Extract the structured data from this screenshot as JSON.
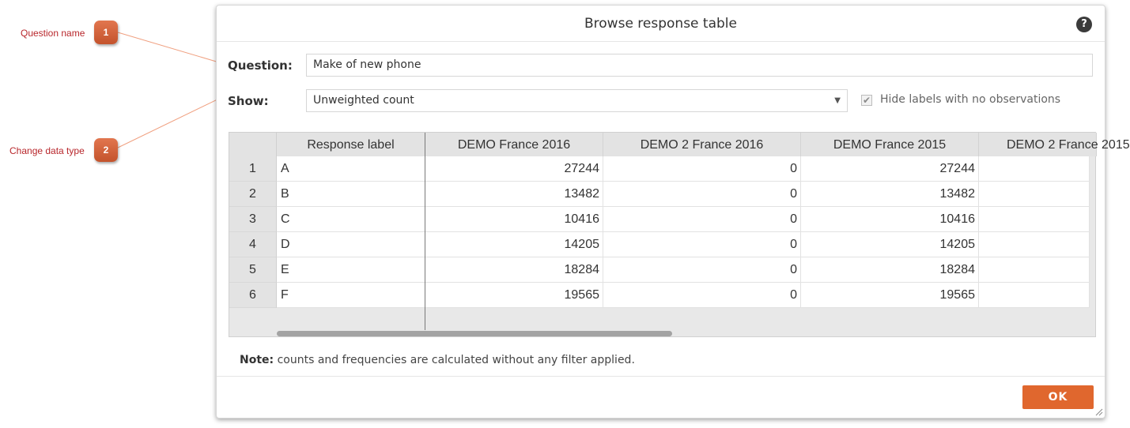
{
  "callouts": [
    {
      "label": "Question name",
      "number": "1"
    },
    {
      "label": "Change data type",
      "number": "2"
    }
  ],
  "dialog": {
    "title": "Browse response table",
    "help_icon": "question-circle-icon",
    "help_label": "?",
    "question_label": "Question:",
    "question_value": "Make of new phone",
    "show_label": "Show:",
    "show_value": "Unweighted count",
    "show_arrow": "▼",
    "hide_labels": {
      "label": "Hide labels with no observations",
      "checked": true,
      "mark": "✔"
    },
    "note_bold": "Note:",
    "note_text": " counts and frequencies are calculated without any filter applied.",
    "ok_label": "OK",
    "ok_color": "#e0672e"
  },
  "table": {
    "columns": [
      "Response label",
      "DEMO France 2016",
      "DEMO 2 France 2016",
      "DEMO France 2015",
      "DEMO 2 France 2015"
    ],
    "rows": [
      {
        "num": "1",
        "label": "A",
        "values": [
          "27244",
          "0",
          "27244"
        ]
      },
      {
        "num": "2",
        "label": "B",
        "values": [
          "13482",
          "0",
          "13482"
        ]
      },
      {
        "num": "3",
        "label": "C",
        "values": [
          "10416",
          "0",
          "10416"
        ]
      },
      {
        "num": "4",
        "label": "D",
        "values": [
          "14205",
          "0",
          "14205"
        ]
      },
      {
        "num": "5",
        "label": "E",
        "values": [
          "18284",
          "0",
          "18284"
        ]
      },
      {
        "num": "6",
        "label": "F",
        "values": [
          "19565",
          "0",
          "19565"
        ]
      }
    ]
  }
}
